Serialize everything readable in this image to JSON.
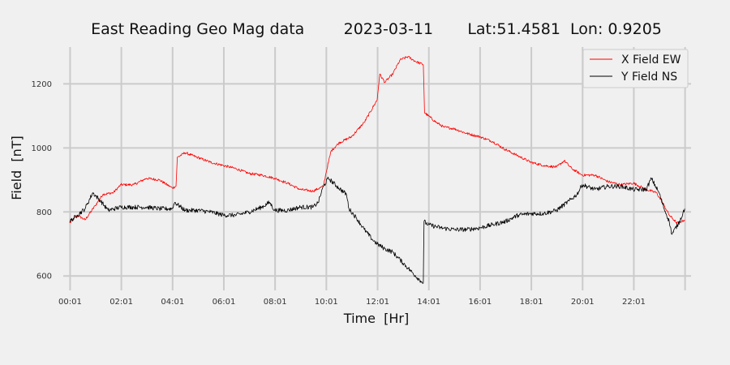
{
  "chart_data": {
    "type": "line",
    "title": "East Reading Geo Mag data        2023-03-11       Lat:51.4581  Lon: 0.9205",
    "xlabel": "Time  [Hr]",
    "ylabel": "Field  [nT]",
    "x_unit": "hours",
    "xlim": [
      -0.25,
      24.25
    ],
    "ylim": [
      555,
      1315
    ],
    "x_ticks": [
      0.0167,
      2.0167,
      4.0167,
      6.0167,
      8.0167,
      10.0167,
      12.0167,
      14.0167,
      16.0167,
      18.0167,
      20.0167,
      22.0167,
      24.0167
    ],
    "x_tick_labels": [
      "00:01",
      "02:01",
      "04:01",
      "06:01",
      "08:01",
      "10:01",
      "12:01",
      "14:01",
      "16:01",
      "18:01",
      "20:01",
      "22:01",
      ""
    ],
    "y_ticks": [
      600,
      800,
      1000,
      1200
    ],
    "y_tick_labels": [
      "600",
      "800",
      "1000",
      "1200"
    ],
    "grid": true,
    "legend_position": "top-right",
    "series": [
      {
        "name": "X Field EW",
        "color": "#ff0000",
        "points": [
          [
            0.0,
            765
          ],
          [
            0.3,
            790
          ],
          [
            0.6,
            775
          ],
          [
            1.0,
            820
          ],
          [
            1.3,
            855
          ],
          [
            1.7,
            860
          ],
          [
            2.0,
            885
          ],
          [
            2.5,
            885
          ],
          [
            3.0,
            905
          ],
          [
            3.5,
            900
          ],
          [
            4.0,
            875
          ],
          [
            4.15,
            880
          ],
          [
            4.2,
            970
          ],
          [
            4.5,
            985
          ],
          [
            5.0,
            970
          ],
          [
            5.5,
            955
          ],
          [
            6.0,
            945
          ],
          [
            6.5,
            935
          ],
          [
            7.0,
            920
          ],
          [
            7.5,
            915
          ],
          [
            8.0,
            905
          ],
          [
            8.5,
            890
          ],
          [
            9.0,
            870
          ],
          [
            9.5,
            865
          ],
          [
            9.9,
            880
          ],
          [
            10.0,
            920
          ],
          [
            10.2,
            990
          ],
          [
            10.5,
            1015
          ],
          [
            11.0,
            1035
          ],
          [
            11.5,
            1080
          ],
          [
            12.0,
            1150
          ],
          [
            12.1,
            1230
          ],
          [
            12.3,
            1205
          ],
          [
            12.6,
            1230
          ],
          [
            12.9,
            1275
          ],
          [
            13.2,
            1285
          ],
          [
            13.5,
            1270
          ],
          [
            13.8,
            1260
          ],
          [
            13.85,
            1110
          ],
          [
            14.0,
            1100
          ],
          [
            14.3,
            1080
          ],
          [
            14.6,
            1065
          ],
          [
            15.0,
            1060
          ],
          [
            15.5,
            1045
          ],
          [
            16.0,
            1035
          ],
          [
            16.5,
            1020
          ],
          [
            17.0,
            995
          ],
          [
            17.5,
            975
          ],
          [
            18.0,
            955
          ],
          [
            18.5,
            945
          ],
          [
            19.0,
            940
          ],
          [
            19.3,
            960
          ],
          [
            19.6,
            935
          ],
          [
            20.0,
            915
          ],
          [
            20.5,
            915
          ],
          [
            21.0,
            895
          ],
          [
            21.5,
            885
          ],
          [
            22.0,
            890
          ],
          [
            22.5,
            870
          ],
          [
            22.9,
            860
          ],
          [
            23.2,
            820
          ],
          [
            23.4,
            790
          ],
          [
            23.7,
            765
          ],
          [
            24.0,
            775
          ]
        ]
      },
      {
        "name": "Y Field NS",
        "color": "#000000",
        "points": [
          [
            0.0,
            770
          ],
          [
            0.3,
            790
          ],
          [
            0.6,
            810
          ],
          [
            0.9,
            860
          ],
          [
            1.2,
            835
          ],
          [
            1.5,
            805
          ],
          [
            2.0,
            815
          ],
          [
            2.5,
            815
          ],
          [
            3.0,
            815
          ],
          [
            3.5,
            810
          ],
          [
            4.0,
            810
          ],
          [
            4.1,
            830
          ],
          [
            4.5,
            805
          ],
          [
            5.0,
            805
          ],
          [
            5.5,
            800
          ],
          [
            6.0,
            790
          ],
          [
            6.5,
            790
          ],
          [
            7.0,
            800
          ],
          [
            7.5,
            815
          ],
          [
            7.8,
            830
          ],
          [
            8.0,
            805
          ],
          [
            8.5,
            805
          ],
          [
            9.0,
            815
          ],
          [
            9.5,
            815
          ],
          [
            9.7,
            830
          ],
          [
            9.9,
            880
          ],
          [
            10.1,
            905
          ],
          [
            10.5,
            875
          ],
          [
            10.8,
            855
          ],
          [
            10.9,
            810
          ],
          [
            11.2,
            780
          ],
          [
            11.5,
            745
          ],
          [
            11.8,
            715
          ],
          [
            12.0,
            700
          ],
          [
            12.3,
            685
          ],
          [
            12.6,
            675
          ],
          [
            12.9,
            650
          ],
          [
            13.2,
            625
          ],
          [
            13.5,
            600
          ],
          [
            13.7,
            585
          ],
          [
            13.8,
            578
          ],
          [
            13.83,
            770
          ],
          [
            14.0,
            760
          ],
          [
            14.5,
            750
          ],
          [
            15.0,
            745
          ],
          [
            15.5,
            745
          ],
          [
            16.0,
            750
          ],
          [
            16.5,
            760
          ],
          [
            17.0,
            770
          ],
          [
            17.5,
            790
          ],
          [
            18.0,
            795
          ],
          [
            18.5,
            795
          ],
          [
            19.0,
            805
          ],
          [
            19.5,
            835
          ],
          [
            19.8,
            855
          ],
          [
            20.0,
            885
          ],
          [
            20.5,
            870
          ],
          [
            21.0,
            880
          ],
          [
            21.5,
            880
          ],
          [
            22.0,
            870
          ],
          [
            22.5,
            870
          ],
          [
            22.7,
            905
          ],
          [
            23.0,
            860
          ],
          [
            23.2,
            810
          ],
          [
            23.4,
            770
          ],
          [
            23.5,
            730
          ],
          [
            23.8,
            770
          ],
          [
            24.0,
            810
          ]
        ]
      }
    ]
  }
}
